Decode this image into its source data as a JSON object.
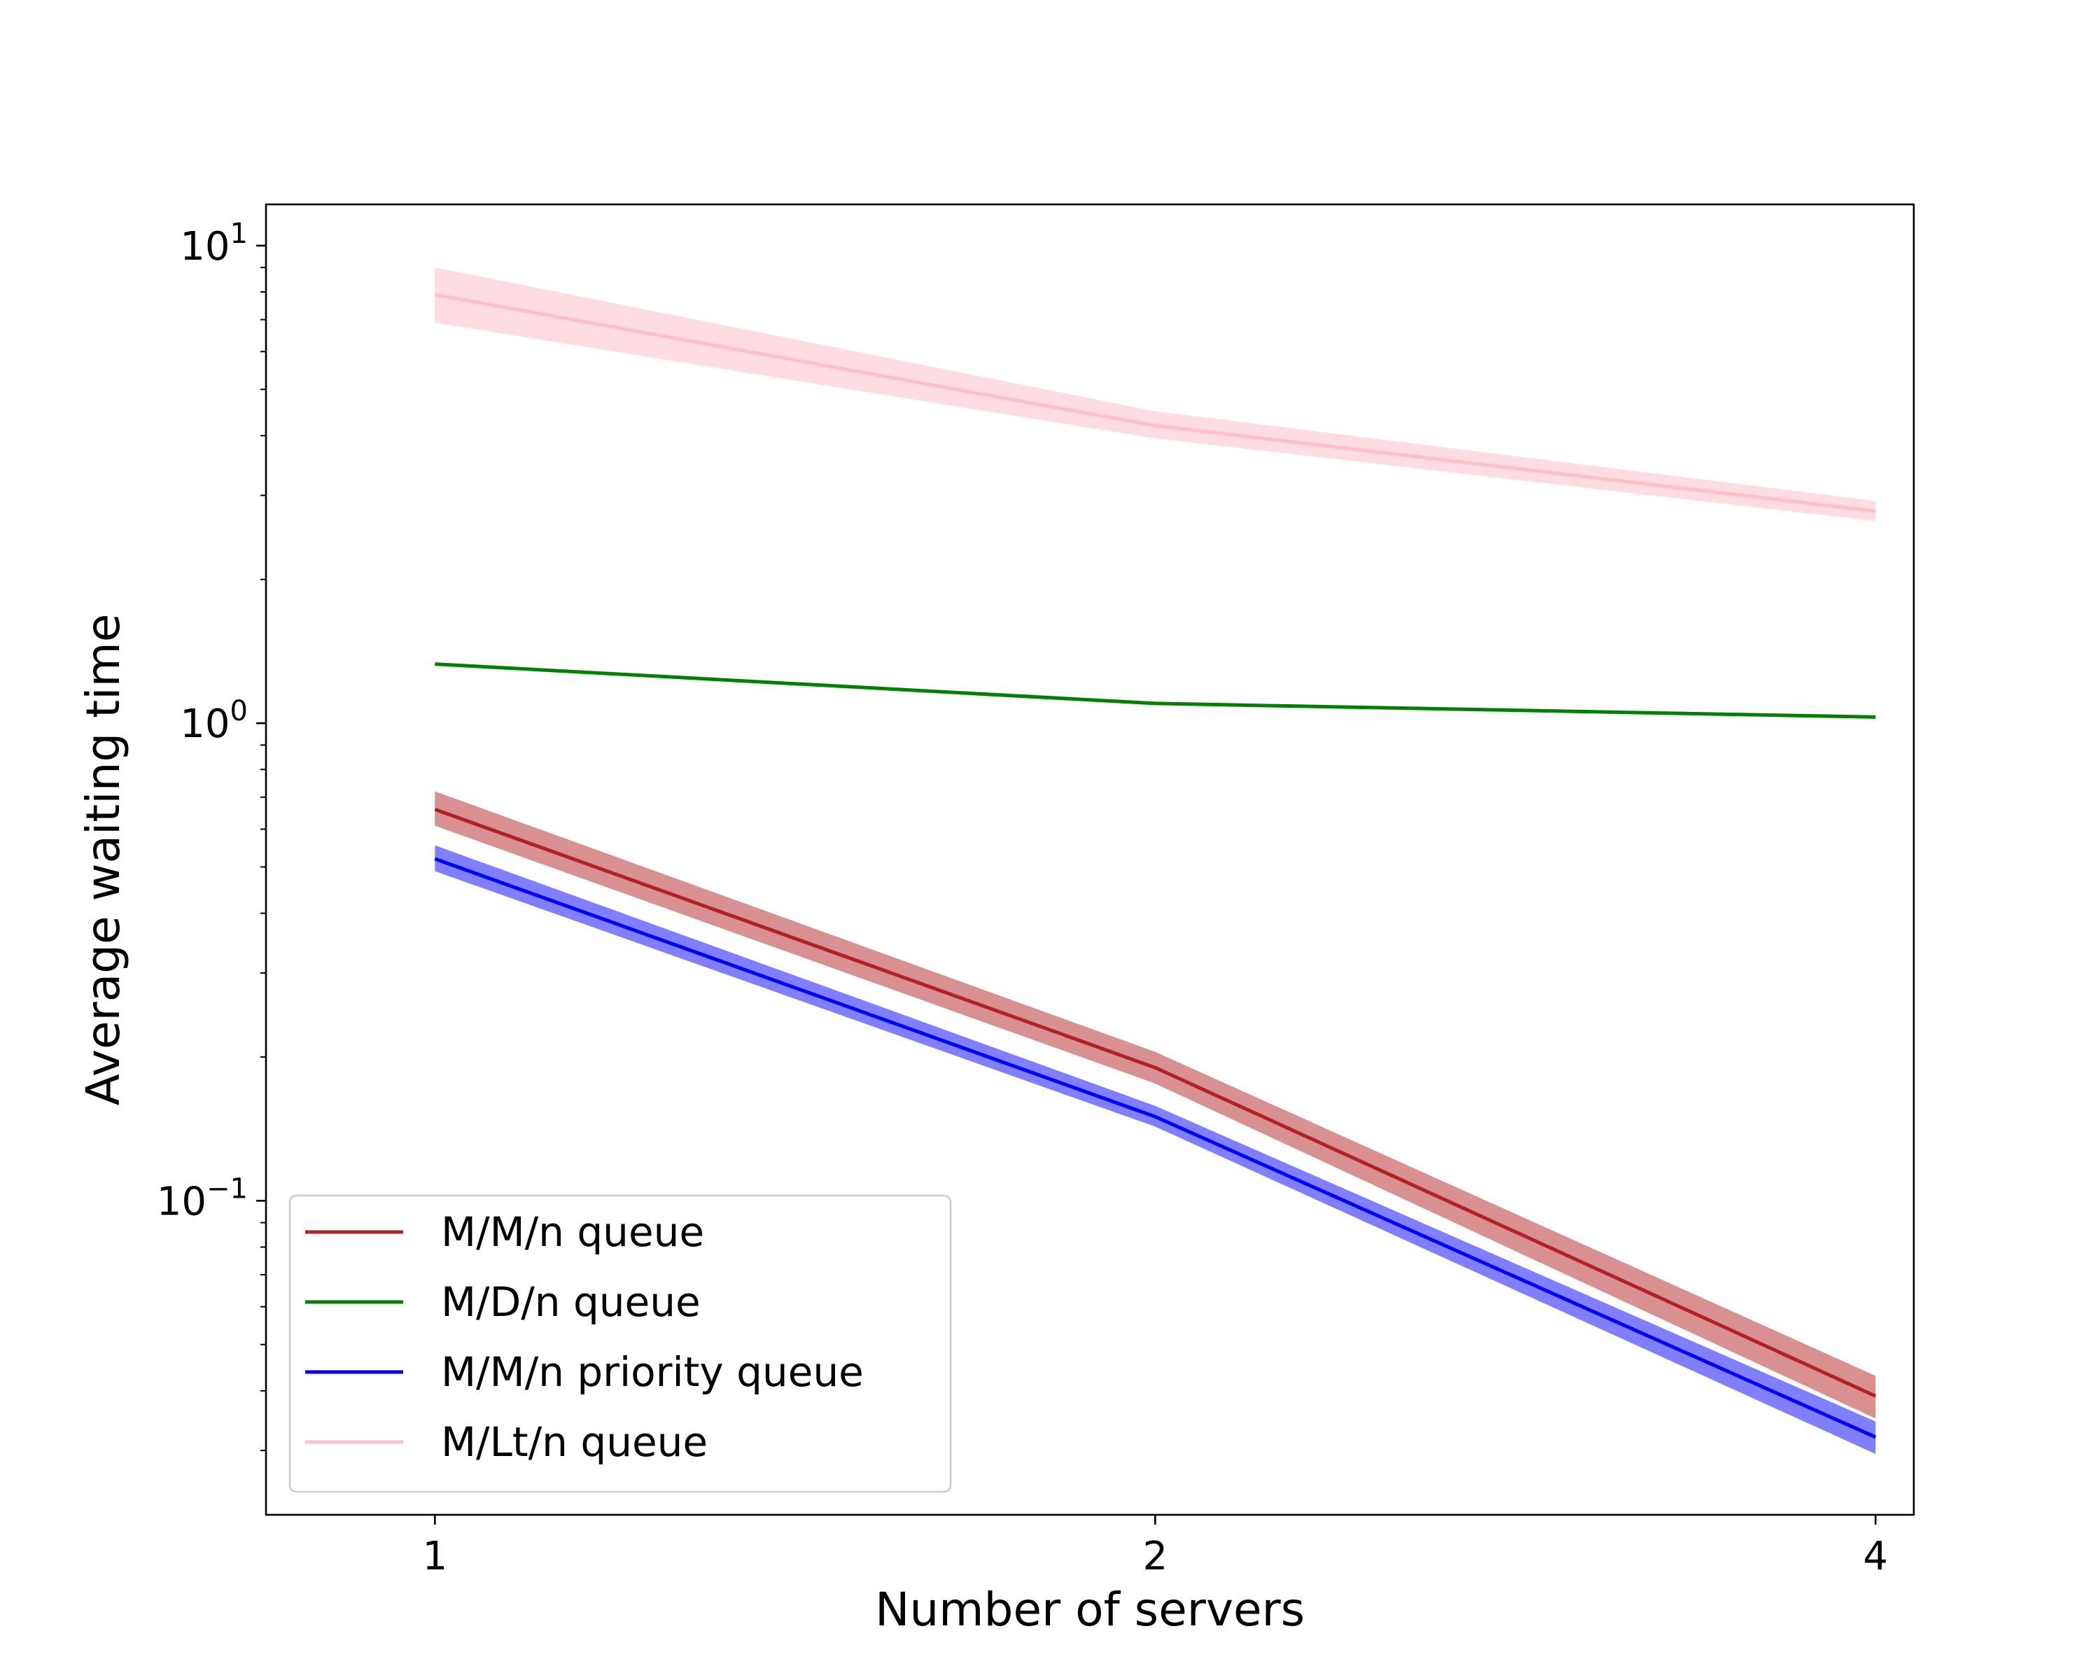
{
  "chart_data": {
    "type": "line",
    "title": "",
    "xlabel": "Number of servers",
    "ylabel": "Average waiting time",
    "x": [
      1,
      2,
      4
    ],
    "x_tick_labels": [
      "1",
      "2",
      "4"
    ],
    "xlim": [
      0.85,
      4.15
    ],
    "yscale": "log",
    "ylim": [
      0.022,
      12.2
    ],
    "y_ticks": [
      {
        "value": 10,
        "base": "10",
        "exp": "1"
      },
      {
        "value": 1,
        "base": "10",
        "exp": "0"
      },
      {
        "value": 0.1,
        "base": "10",
        "exp": "−1"
      }
    ],
    "grid": false,
    "legend_position": "lower-left",
    "series": [
      {
        "name": "M/M/n queue",
        "color": "#b22222",
        "band_color": "#b22222",
        "values": [
          0.66,
          0.19,
          0.039
        ],
        "lower": [
          0.61,
          0.176,
          0.035
        ],
        "upper": [
          0.72,
          0.205,
          0.043
        ]
      },
      {
        "name": "M/D/n queue",
        "color": "#008000",
        "band_color": "#008000",
        "values": [
          1.33,
          1.1,
          1.03
        ],
        "lower": [
          1.33,
          1.1,
          1.03
        ],
        "upper": [
          1.33,
          1.1,
          1.03
        ]
      },
      {
        "name": "M/M/n priority queue",
        "color": "#0000ff",
        "band_color": "#0000ff",
        "values": [
          0.52,
          0.15,
          0.032
        ],
        "lower": [
          0.49,
          0.143,
          0.0295
        ],
        "upper": [
          0.555,
          0.158,
          0.0345
        ]
      },
      {
        "name": "M/Lt/n queue",
        "color": "#ffc0cb",
        "band_color": "#ffc0cb",
        "values": [
          7.9,
          4.2,
          2.78
        ],
        "lower": [
          6.9,
          3.95,
          2.65
        ],
        "upper": [
          9.0,
          4.5,
          2.92
        ]
      }
    ]
  }
}
